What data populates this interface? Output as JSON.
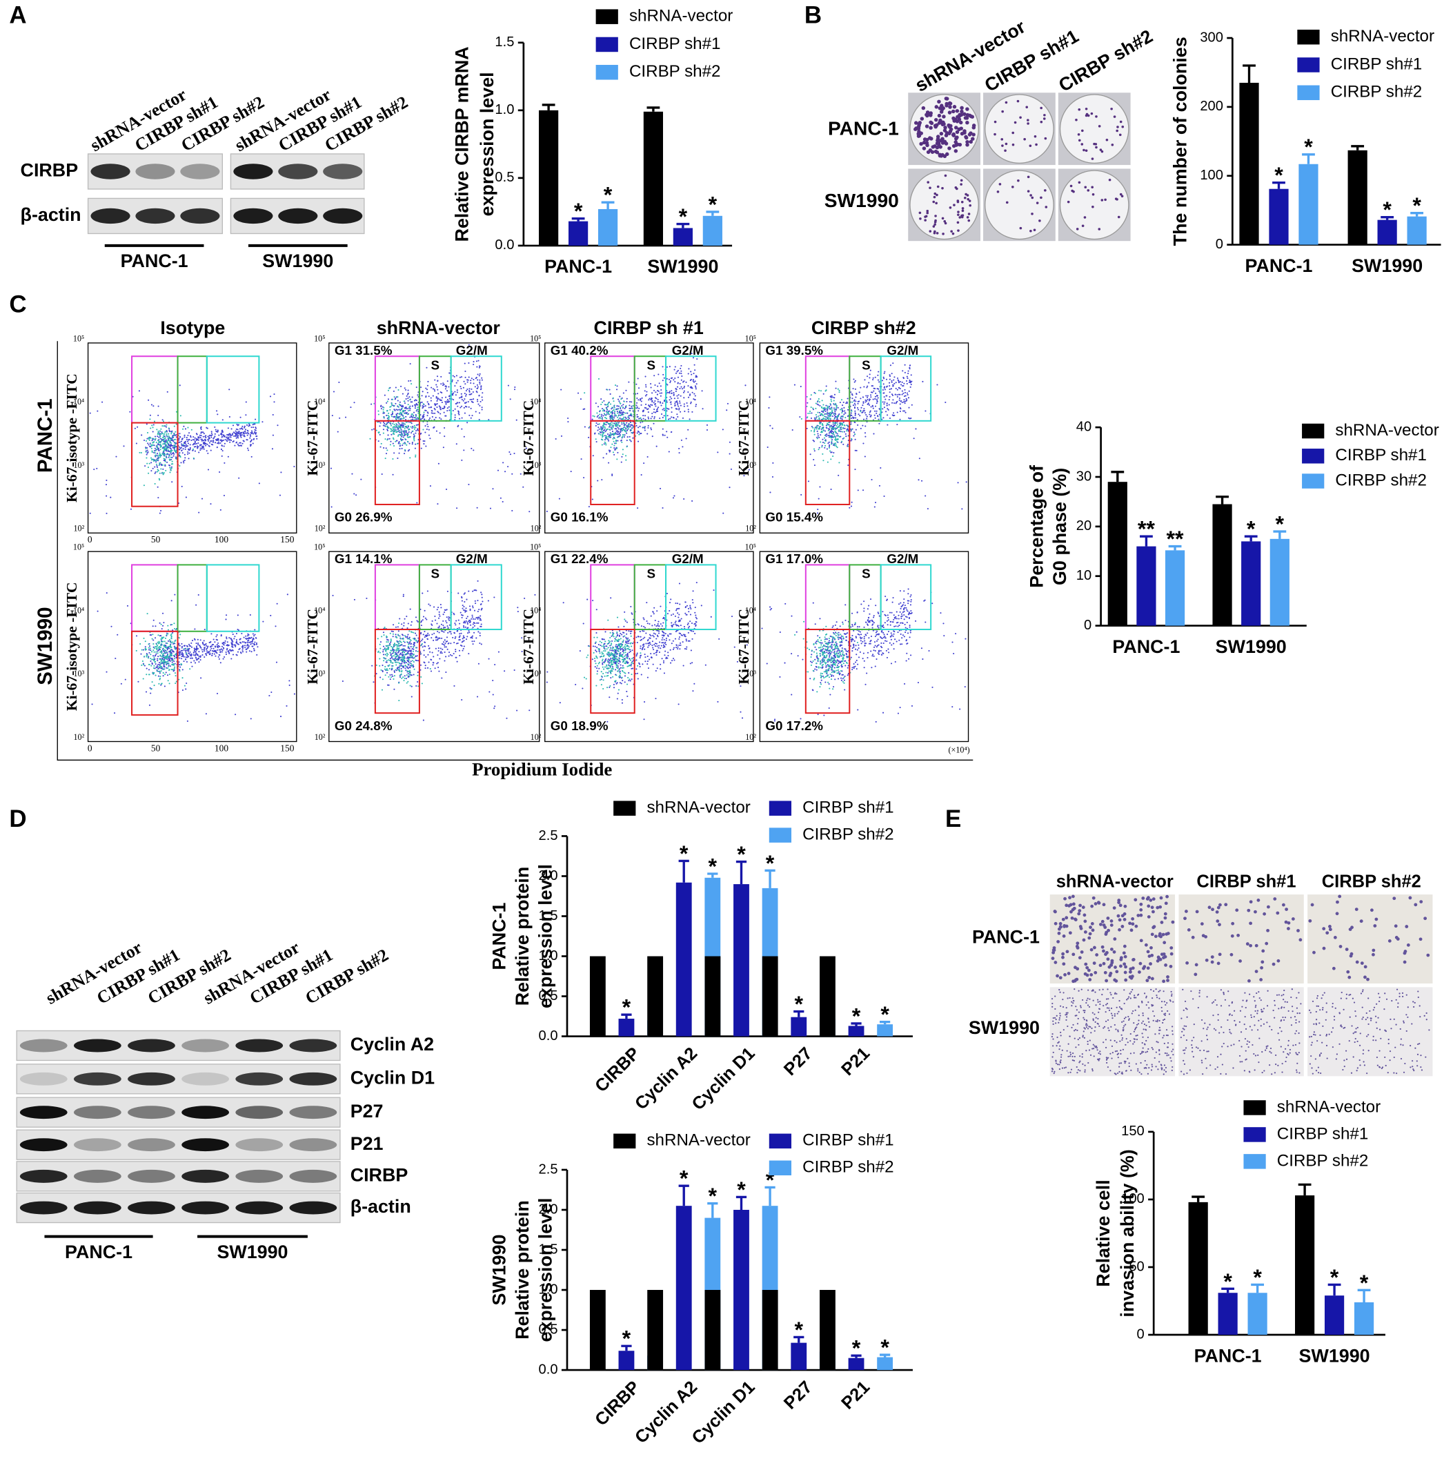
{
  "chart_data": [
    {
      "type": "bar",
      "y_label": [
        "Relative CIRBP mRNA",
        "expression level"
      ],
      "categories": [
        "PANC-1",
        "SW1990"
      ],
      "series": [
        {
          "name": "shRNA-vector",
          "color": "#000000",
          "values": [
            1.0,
            0.99
          ],
          "errors": [
            0.04,
            0.03
          ]
        },
        {
          "name": "CIRBP sh#1",
          "color": "#1616a8",
          "values": [
            0.18,
            0.13
          ],
          "errors": [
            0.02,
            0.03
          ],
          "sig": [
            "*",
            "*"
          ]
        },
        {
          "name": "CIRBP sh#2",
          "color": "#4fa3f2",
          "values": [
            0.27,
            0.22
          ],
          "errors": [
            0.05,
            0.03
          ],
          "sig": [
            "*",
            "*"
          ]
        }
      ],
      "ylim": [
        0,
        1.5
      ],
      "yticks": [
        {
          "value": 0,
          "label": "0.0"
        },
        0.5,
        {
          "value": 1,
          "label": "1.0"
        },
        1.5
      ]
    },
    {
      "type": "bar",
      "y_label": [
        "The number of colonies"
      ],
      "categories": [
        "PANC-1",
        "SW1990"
      ],
      "series": [
        {
          "name": "shRNA-vector",
          "color": "#000000",
          "values": [
            235,
            137
          ],
          "errors": [
            25,
            6
          ]
        },
        {
          "name": "CIRBP sh#1",
          "color": "#1616a8",
          "values": [
            81,
            36
          ],
          "errors": [
            9,
            4
          ],
          "sig": [
            "*",
            "*"
          ]
        },
        {
          "name": "CIRBP sh#2",
          "color": "#4fa3f2",
          "values": [
            117,
            41
          ],
          "errors": [
            14,
            5
          ],
          "sig": [
            "*",
            "*"
          ]
        }
      ],
      "ylim": [
        0,
        300
      ],
      "yticks": [
        0,
        100,
        200,
        300
      ]
    },
    {
      "type": "bar",
      "y_label": [
        "Percentage of",
        "G0 phase (%)"
      ],
      "categories": [
        "PANC-1",
        "SW1990"
      ],
      "series": [
        {
          "name": "shRNA-vector",
          "color": "#000000",
          "values": [
            29,
            24.5
          ],
          "errors": [
            2,
            1.5
          ]
        },
        {
          "name": "CIRBP sh#1",
          "color": "#1616a8",
          "values": [
            16,
            17
          ],
          "errors": [
            2,
            1
          ],
          "sig": [
            "**",
            "*"
          ]
        },
        {
          "name": "CIRBP sh#2",
          "color": "#4fa3f2",
          "values": [
            15.2,
            17.5
          ],
          "errors": [
            0.8,
            1.5
          ],
          "sig": [
            "**",
            "*"
          ]
        }
      ],
      "ylim": [
        0,
        40
      ],
      "yticks": [
        0,
        10,
        20,
        30,
        40
      ]
    },
    {
      "type": "bar",
      "y_label": [
        "PANC-1",
        "Relative protein",
        "expression level"
      ],
      "categories": [
        "CIRBP",
        "Cyclin A2",
        "Cyclin D1",
        "P27",
        "P21"
      ],
      "series": [
        {
          "name": "shRNA-vector",
          "color": "#000000",
          "values": [
            1,
            1,
            1,
            1,
            1
          ]
        },
        {
          "name": "CIRBP sh#1",
          "color": "#1616a8",
          "values": [
            0.22,
            1.92,
            1.9,
            0.24,
            0.13
          ],
          "errors": [
            0.05,
            0.27,
            0.28,
            0.07,
            0.03
          ],
          "sig": [
            "*",
            "*",
            "*",
            "*",
            "*"
          ]
        },
        {
          "name": "CIRBP sh#2",
          "color": "#4fa3f2",
          "values": [
            0.2,
            1.98,
            1.85,
            0.22,
            0.15
          ],
          "errors": [
            0.07,
            0.05,
            0.22,
            0.05,
            0.03
          ],
          "sig": [
            "*",
            "*",
            "*",
            "*",
            "*"
          ]
        }
      ],
      "ylim": [
        0,
        2.5
      ],
      "yticks": [
        {
          "value": 0,
          "label": "0.0"
        },
        0.5,
        {
          "value": 1,
          "label": "1.0"
        },
        1.5,
        {
          "value": 2,
          "label": "2.0"
        },
        2.5
      ]
    },
    {
      "type": "bar",
      "y_label": [
        "SW1990",
        "Relative protein",
        "expression level"
      ],
      "categories": [
        "CIRBP",
        "Cyclin A2",
        "Cyclin D1",
        "P27",
        "P21"
      ],
      "series": [
        {
          "name": "shRNA-vector",
          "color": "#000000",
          "values": [
            1,
            1,
            1,
            1,
            1
          ]
        },
        {
          "name": "CIRBP sh#1",
          "color": "#1616a8",
          "values": [
            0.24,
            2.05,
            2.0,
            0.34,
            0.15
          ],
          "errors": [
            0.06,
            0.25,
            0.16,
            0.07,
            0.03
          ],
          "sig": [
            "*",
            "*",
            "*",
            "*",
            "*"
          ]
        },
        {
          "name": "CIRBP sh#2",
          "color": "#4fa3f2",
          "values": [
            0.18,
            1.9,
            2.05,
            0.23,
            0.16
          ],
          "errors": [
            0.07,
            0.18,
            0.23,
            0.06,
            0.03
          ],
          "sig": [
            "*",
            "*",
            "*",
            "*",
            "*"
          ]
        }
      ],
      "ylim": [
        0,
        2.5
      ],
      "yticks": [
        {
          "value": 0,
          "label": "0.0"
        },
        0.5,
        {
          "value": 1,
          "label": "1.0"
        },
        1.5,
        {
          "value": 2,
          "label": "2.0"
        },
        2.5
      ]
    },
    {
      "type": "bar",
      "y_label": [
        "Relative cell",
        "invasion ability (%)"
      ],
      "categories": [
        "PANC-1",
        "SW1990"
      ],
      "series": [
        {
          "name": "shRNA-vector",
          "color": "#000000",
          "values": [
            98,
            103
          ],
          "errors": [
            4,
            8
          ]
        },
        {
          "name": "CIRBP sh#1",
          "color": "#1616a8",
          "values": [
            31,
            29
          ],
          "errors": [
            3,
            8
          ],
          "sig": [
            "*",
            "*"
          ]
        },
        {
          "name": "CIRBP sh#2",
          "color": "#4fa3f2",
          "values": [
            31,
            24
          ],
          "errors": [
            6,
            9
          ],
          "sig": [
            "*",
            "*"
          ]
        }
      ],
      "ylim": [
        0,
        150
      ],
      "yticks": [
        0,
        50,
        100,
        150
      ]
    }
  ],
  "figure": {
    "panels": [
      "A",
      "B",
      "C",
      "D",
      "E"
    ],
    "blotA": {
      "lanes": [
        "shRNA-vector",
        "CIRBP sh#1",
        "CIRBP sh#2",
        "shRNA-vector",
        "CIRBP sh#1",
        "CIRBP sh#2"
      ],
      "rows": [
        "CIRBP",
        "β-actin"
      ],
      "groups": [
        "PANC-1",
        "SW1990"
      ]
    },
    "colonyB": {
      "columns": [
        "shRNA-vector",
        "CIRBP sh#1",
        "CIRBP sh#2"
      ],
      "rows": [
        "PANC-1",
        "SW1990"
      ]
    },
    "flowC": {
      "columns": [
        "Isotype",
        "shRNA-vector",
        "CIRBP sh #1",
        "CIRBP sh#2"
      ],
      "rows": [
        "PANC-1",
        "SW1990"
      ],
      "y_labels": [
        "Ki-67-isotype -FITC",
        "Ki-67-FITC"
      ],
      "gates": [
        [
          "G1 31.5%",
          "G0 26.9%"
        ],
        [
          "G1 40.2%",
          "G0 16.1%"
        ],
        [
          "G1 39.5%",
          "G0 15.4%"
        ],
        [
          "G1 14.1%",
          "G0 24.8%"
        ],
        [
          "G1 22.4%",
          "G0 18.9%"
        ],
        [
          "G1 17.0%",
          "G0 17.2%"
        ]
      ],
      "phases": [
        "S",
        "G2/M"
      ],
      "x_ticks": [
        "0",
        "50",
        "100",
        "150"
      ],
      "y_ticks": [
        "10²",
        "10³",
        "10⁴",
        "10⁵"
      ],
      "x_unit": "(×10⁴)",
      "x_label": "Propidium Iodide"
    },
    "blotD": {
      "lanes": [
        "shRNA-vector",
        "CIRBP sh#1",
        "CIRBP sh#2",
        "shRNA-vector",
        "CIRBP sh#1",
        "CIRBP sh#2"
      ],
      "rows": [
        "Cyclin A2",
        "Cyclin D1",
        "P27",
        "P21",
        "CIRBP",
        "β-actin"
      ],
      "groups": [
        "PANC-1",
        "SW1990"
      ]
    },
    "invasionE": {
      "columns": [
        "shRNA-vector",
        "CIRBP sh#1",
        "CIRBP sh#2"
      ],
      "rows": [
        "PANC-1",
        "SW1990"
      ]
    }
  }
}
